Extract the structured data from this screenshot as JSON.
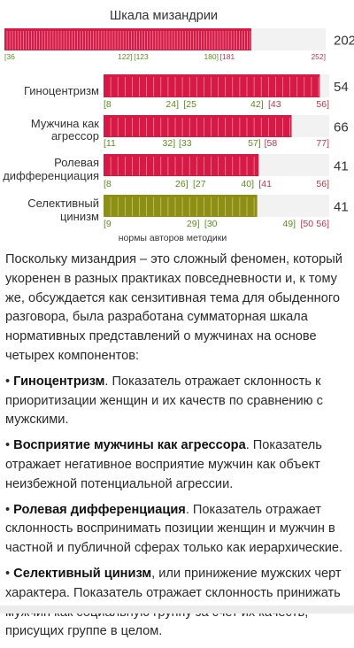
{
  "colors": {
    "red": "#d61a45",
    "olive": "#8d8f12",
    "track": "#f2f2f2",
    "tick_green": "#5a8f1e",
    "tick_red": "#c0344a",
    "text": "#2a2a2a"
  },
  "chart_data": {
    "type": "bar",
    "title": "Шкала мизандрии",
    "footnote": "нормы авторов методики",
    "rows": [
      {
        "label": "",
        "value": 202,
        "min": 36,
        "max": 252,
        "color": "red",
        "ticks": [
          36,
          122,
          123,
          180,
          181,
          252
        ]
      },
      {
        "label": "Гиноцентризм",
        "value": 54,
        "min": 8,
        "max": 56,
        "color": "red",
        "ticks": [
          8,
          24,
          25,
          42,
          43,
          56
        ]
      },
      {
        "label": "Мужчина как агрессор",
        "value": 66,
        "min": 11,
        "max": 77,
        "color": "red",
        "ticks": [
          11,
          32,
          33,
          57,
          58,
          77
        ]
      },
      {
        "label": "Ролевая дифференциация",
        "value": 41,
        "min": 8,
        "max": 56,
        "color": "red",
        "ticks": [
          8,
          26,
          27,
          40,
          41,
          56
        ]
      },
      {
        "label": "Селективный цинизм",
        "value": 41,
        "min": 9,
        "max": 56,
        "color": "olive",
        "ticks": [
          9,
          29,
          30,
          49,
          50,
          56
        ]
      }
    ]
  },
  "article": {
    "intro": "Поскольку мизандрия – это сложный феномен, который укоренен в разных практиках повседневности и, к тому же, обсуждается как сензитивная тема для обыденного разговора, была разработана сумматорная шкала нормативных представлений о мужчинах на основе четырех компонентов:",
    "items": [
      {
        "bullet": "•",
        "term": "Гиноцентризм",
        "text": ". Показатель отражает склонность к приоритизации женщин и их качеств по сравнению с мужскими."
      },
      {
        "bullet": "•",
        "term": "Восприятие мужчины как агрессора",
        "text": ". Показатель отражает негативное восприятие мужчин как объект неизбежной потенциальной агрессии."
      },
      {
        "bullet": "•",
        "term": "Ролевая дифференциация",
        "text": ". Показатель отражает склонность воспринимать позиции женщин и мужчин в частной и публичной сферах только как иерархические."
      },
      {
        "bullet": "•",
        "term": "Селективный цинизм",
        "text": ", или принижение мужских черт характера. Показатель отражает склонность принижать мужчин как социальную группу за счет их качеств, присущих группе в целом."
      }
    ]
  }
}
